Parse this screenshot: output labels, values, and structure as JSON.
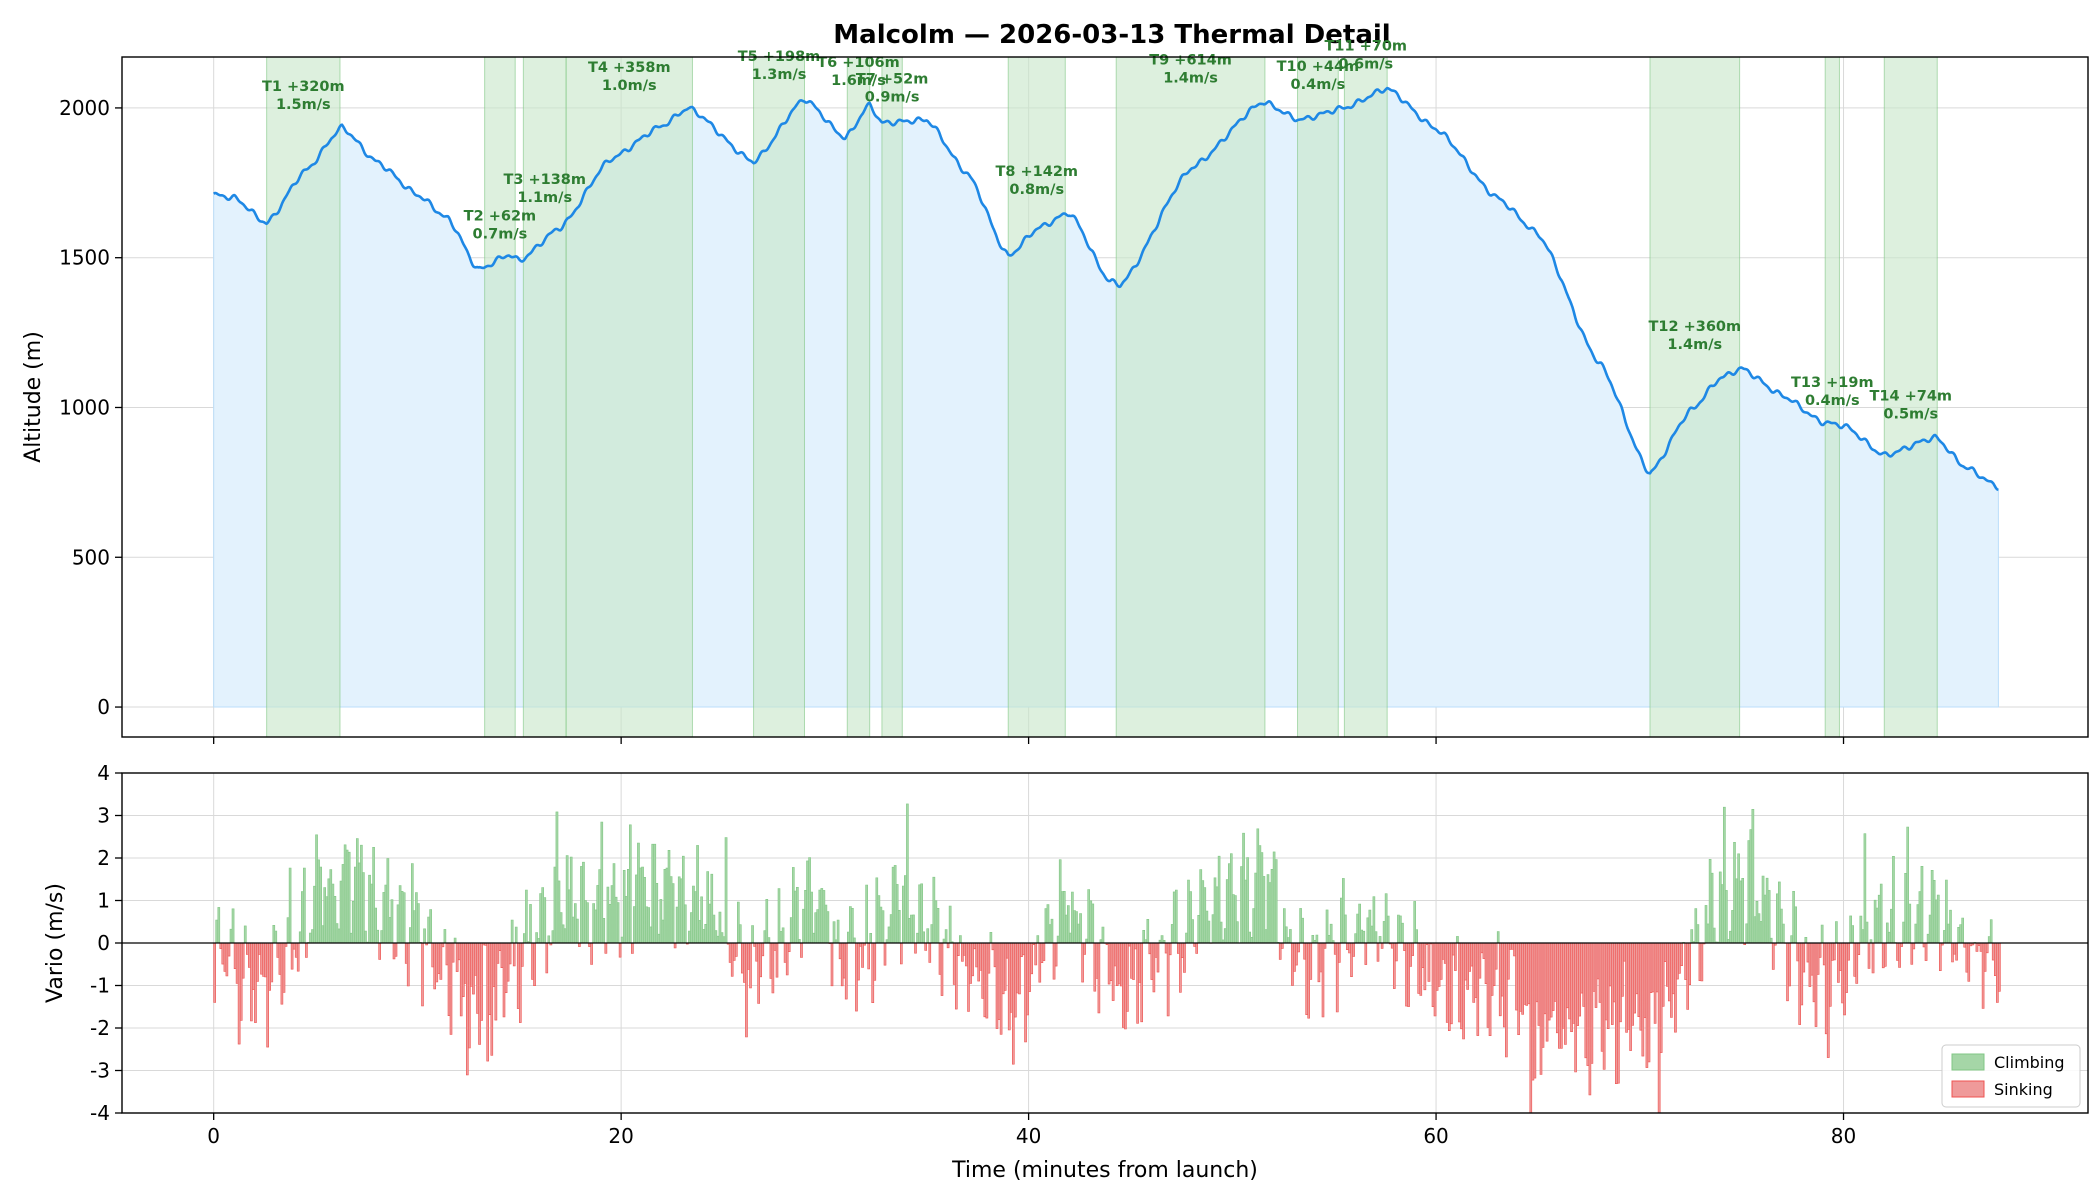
{
  "chart_data": [
    {
      "type": "area",
      "title": "Malcolm — 2026-03-13 Thermal Detail",
      "xlabel": "",
      "ylabel": "Altitude (m)",
      "xlim": [
        -4.5,
        92
      ],
      "ylim": [
        -100,
        2170
      ],
      "xticks": [
        0,
        20,
        40,
        60,
        80
      ],
      "yticks": [
        0,
        500,
        1000,
        1500,
        2000
      ],
      "grid": true,
      "line_color": "#1e88e5",
      "fill_color": "#e3f2fd",
      "thermal_color": "#c8e6c9",
      "altitude_knots": [
        [
          0,
          1710
        ],
        [
          1,
          1700
        ],
        [
          2.6,
          1615
        ],
        [
          4.5,
          1790
        ],
        [
          6.3,
          1935
        ],
        [
          8,
          1820
        ],
        [
          10,
          1710
        ],
        [
          11.5,
          1630
        ],
        [
          13.0,
          1460
        ],
        [
          14.5,
          1510
        ],
        [
          15.0,
          1490
        ],
        [
          17.0,
          1600
        ],
        [
          19.5,
          1830
        ],
        [
          22,
          1940
        ],
        [
          23.3,
          2000
        ],
        [
          26.5,
          1820
        ],
        [
          29,
          2030
        ],
        [
          31.0,
          1900
        ],
        [
          32.2,
          2010
        ],
        [
          32.8,
          1950
        ],
        [
          35,
          1960
        ],
        [
          37,
          1780
        ],
        [
          39,
          1505
        ],
        [
          40.5,
          1600
        ],
        [
          42,
          1650
        ],
        [
          44,
          1420
        ],
        [
          44.5,
          1410
        ],
        [
          48,
          1800
        ],
        [
          51.5,
          2020
        ],
        [
          53.3,
          1960
        ],
        [
          55.5,
          2000
        ],
        [
          57.6,
          2065
        ],
        [
          60,
          1930
        ],
        [
          63,
          1700
        ],
        [
          65,
          1580
        ],
        [
          68,
          1150
        ],
        [
          70.5,
          780
        ],
        [
          72.5,
          990
        ],
        [
          74,
          1100
        ],
        [
          75,
          1130
        ],
        [
          77,
          1040
        ],
        [
          79,
          950
        ],
        [
          80,
          940
        ],
        [
          82,
          840
        ],
        [
          84.5,
          900
        ],
        [
          86,
          800
        ],
        [
          87.6,
          735
        ]
      ],
      "thermals": [
        {
          "id": "T1",
          "label": "T1 +320m",
          "rate": "1.5m/s",
          "start": 2.6,
          "end": 6.2,
          "gain": 320,
          "climb": 1.5
        },
        {
          "id": "T2",
          "label": "T2 +62m",
          "rate": "0.7m/s",
          "start": 13.3,
          "end": 14.8,
          "gain": 62,
          "climb": 0.7
        },
        {
          "id": "T3",
          "label": "T3 +138m",
          "rate": "1.1m/s",
          "start": 15.2,
          "end": 17.3,
          "gain": 138,
          "climb": 1.1
        },
        {
          "id": "T4",
          "label": "T4 +358m",
          "rate": "1.0m/s",
          "start": 17.3,
          "end": 23.5,
          "gain": 358,
          "climb": 1.0
        },
        {
          "id": "T5",
          "label": "T5 +198m",
          "rate": "1.3m/s",
          "start": 26.5,
          "end": 29.0,
          "gain": 198,
          "climb": 1.3
        },
        {
          "id": "T6",
          "label": "T6 +106m",
          "rate": "1.6m/s",
          "start": 31.1,
          "end": 32.2,
          "gain": 106,
          "climb": 1.6
        },
        {
          "id": "T7",
          "label": "T7 +52m",
          "rate": "0.9m/s",
          "start": 32.8,
          "end": 33.8,
          "gain": 52,
          "climb": 0.9
        },
        {
          "id": "T8",
          "label": "T8 +142m",
          "rate": "0.8m/s",
          "start": 39.0,
          "end": 41.8,
          "gain": 142,
          "climb": 0.8
        },
        {
          "id": "T9",
          "label": "T9 +614m",
          "rate": "1.4m/s",
          "start": 44.3,
          "end": 51.6,
          "gain": 614,
          "climb": 1.4
        },
        {
          "id": "T10",
          "label": "T10 +44m",
          "rate": "0.4m/s",
          "start": 53.2,
          "end": 55.2,
          "gain": 44,
          "climb": 0.4
        },
        {
          "id": "T11",
          "label": "T11 +70m",
          "rate": "0.6m/s",
          "start": 55.5,
          "end": 57.6,
          "gain": 70,
          "climb": 0.6
        },
        {
          "id": "T12",
          "label": "T12 +360m",
          "rate": "1.4m/s",
          "start": 70.5,
          "end": 74.9,
          "gain": 360,
          "climb": 1.4
        },
        {
          "id": "T13",
          "label": "T13 +19m",
          "rate": "0.4m/s",
          "start": 79.1,
          "end": 79.8,
          "gain": 19,
          "climb": 0.4
        },
        {
          "id": "T14",
          "label": "T14 +74m",
          "rate": "0.5m/s",
          "start": 82.0,
          "end": 84.6,
          "gain": 74,
          "climb": 0.5
        }
      ]
    },
    {
      "type": "area",
      "title": "",
      "xlabel": "Time (minutes from launch)",
      "ylabel": "Vario (m/s)",
      "xlim": [
        -4.5,
        92
      ],
      "ylim": [
        -4,
        4
      ],
      "xticks": [
        0,
        20,
        40,
        60,
        80
      ],
      "yticks": [
        4,
        3,
        2,
        1,
        0,
        -1,
        -2,
        -3,
        -4
      ],
      "grid": true,
      "legend_position": "lower-right",
      "series": [
        {
          "name": "Climbing",
          "color": "#81c784",
          "fill": "#a5d6a7"
        },
        {
          "name": "Sinking",
          "color": "#ef5350",
          "fill": "#ef9a9a"
        }
      ],
      "vario_profile": [
        [
          0,
          -0.6
        ],
        [
          2.6,
          -1.0
        ],
        [
          6.2,
          1.8
        ],
        [
          13.3,
          -1.3
        ],
        [
          17.3,
          1.0
        ],
        [
          23.5,
          1.2
        ],
        [
          26.5,
          -0.9
        ],
        [
          29,
          1.3
        ],
        [
          31.1,
          -0.4
        ],
        [
          33.8,
          0.8
        ],
        [
          39.0,
          -1.5
        ],
        [
          41.8,
          0.9
        ],
        [
          44.3,
          -1.0
        ],
        [
          51.6,
          1.6
        ],
        [
          53.2,
          -0.5
        ],
        [
          57.6,
          0.4
        ],
        [
          60,
          -1.1
        ],
        [
          63,
          -1.2
        ],
        [
          65,
          -2.0
        ],
        [
          68,
          -2.1
        ],
        [
          70.5,
          -1.8
        ],
        [
          74.9,
          1.6
        ],
        [
          79.1,
          -1.2
        ],
        [
          82.0,
          0.6
        ],
        [
          84.6,
          0.6
        ],
        [
          87.6,
          -0.8
        ]
      ]
    }
  ]
}
